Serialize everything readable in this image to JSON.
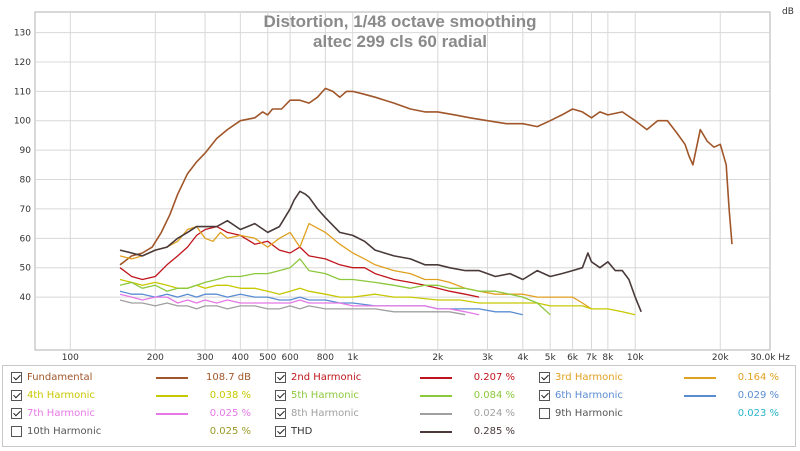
{
  "chart_data": {
    "type": "line",
    "title": "Distortion, 1/48 octave smoothing",
    "subtitle": "altec 299 cls 60 radial",
    "ylabel": "dB",
    "xlabel": "",
    "x_scale": "log",
    "xlim": [
      75,
      30000
    ],
    "ylim": [
      22,
      137
    ],
    "grid": true,
    "x_ticks": [
      {
        "v": 100,
        "label": "100"
      },
      {
        "v": 200,
        "label": "200"
      },
      {
        "v": 300,
        "label": "300"
      },
      {
        "v": 400,
        "label": "400"
      },
      {
        "v": 500,
        "label": "500"
      },
      {
        "v": 600,
        "label": "600"
      },
      {
        "v": 800,
        "label": "800"
      },
      {
        "v": 1000,
        "label": "1k"
      },
      {
        "v": 2000,
        "label": "2k"
      },
      {
        "v": 3000,
        "label": "3k"
      },
      {
        "v": 4000,
        "label": "4k"
      },
      {
        "v": 5000,
        "label": "5k"
      },
      {
        "v": 6000,
        "label": "6k"
      },
      {
        "v": 7000,
        "label": "7k"
      },
      {
        "v": 8000,
        "label": "8k"
      },
      {
        "v": 10000,
        "label": "10k"
      },
      {
        "v": 20000,
        "label": "20k"
      },
      {
        "v": 30000,
        "label": "30.0k Hz"
      }
    ],
    "y_ticks": [
      {
        "v": 40,
        "label": "40"
      },
      {
        "v": 50,
        "label": "50"
      },
      {
        "v": 60,
        "label": "60"
      },
      {
        "v": 70,
        "label": "70"
      },
      {
        "v": 80,
        "label": "80"
      },
      {
        "v": 90,
        "label": "90"
      },
      {
        "v": 100,
        "label": "100"
      },
      {
        "v": 110,
        "label": "110"
      },
      {
        "v": 120,
        "label": "120"
      },
      {
        "v": 130,
        "label": "130"
      }
    ],
    "series": [
      {
        "name": "Fundamental",
        "color": "#a0562a",
        "checked": true,
        "value": "108.7",
        "unit": "dB",
        "x": [
          150,
          155,
          165,
          180,
          195,
          210,
          225,
          240,
          260,
          280,
          300,
          330,
          360,
          400,
          450,
          480,
          500,
          520,
          560,
          600,
          650,
          700,
          750,
          800,
          850,
          900,
          950,
          1000,
          1100,
          1200,
          1400,
          1600,
          1800,
          2000,
          2300,
          2600,
          3000,
          3500,
          4000,
          4500,
          5000,
          5500,
          6000,
          6500,
          7000,
          7500,
          8000,
          9000,
          10000,
          11000,
          12000,
          13000,
          14000,
          15000,
          15500,
          16000,
          17000,
          18000,
          19000,
          20000,
          21000,
          21500,
          22000
        ],
        "y": [
          51,
          52,
          54,
          55,
          57,
          62,
          68,
          75,
          82,
          86,
          89,
          94,
          97,
          100,
          101,
          103,
          102,
          104,
          104,
          107,
          107,
          106,
          108,
          111,
          110,
          108,
          110,
          110,
          109,
          108,
          106,
          104,
          103,
          103,
          102,
          101,
          100,
          99,
          99,
          98,
          100,
          102,
          104,
          103,
          101,
          103,
          102,
          103,
          100,
          97,
          100,
          100,
          96,
          92,
          88,
          85,
          97,
          93,
          91,
          92,
          85,
          70,
          58
        ]
      },
      {
        "name": "2nd Harmonic",
        "color": "#c0141c",
        "checked": true,
        "value": "0.207",
        "unit": "%",
        "x": [
          150,
          165,
          180,
          200,
          220,
          240,
          260,
          280,
          300,
          330,
          360,
          400,
          450,
          500,
          550,
          600,
          650,
          700,
          800,
          900,
          1000,
          1100,
          1200,
          1400,
          1600,
          1800,
          2000,
          2200,
          2500,
          2800
        ],
        "y": [
          50,
          47,
          46,
          47,
          51,
          54,
          57,
          61,
          63,
          64,
          62,
          61,
          58,
          59,
          56,
          55,
          57,
          54,
          53,
          51,
          50,
          50,
          48,
          46,
          45,
          44,
          43,
          42,
          41,
          40
        ]
      },
      {
        "name": "3rd Harmonic",
        "color": "#e0a020",
        "checked": true,
        "value": "0.164",
        "unit": "%",
        "x": [
          150,
          165,
          180,
          200,
          220,
          240,
          260,
          280,
          300,
          320,
          340,
          360,
          400,
          450,
          500,
          550,
          600,
          650,
          700,
          800,
          900,
          1000,
          1100,
          1200,
          1400,
          1600,
          1800,
          2000,
          2200,
          2500,
          2800,
          3200,
          3600,
          4000,
          4500,
          5000,
          5500,
          6000,
          6500,
          7000
        ],
        "y": [
          54,
          53,
          54,
          56,
          57,
          59,
          63,
          64,
          60,
          59,
          62,
          60,
          61,
          60,
          57,
          60,
          62,
          57,
          65,
          62,
          58,
          55,
          53,
          51,
          49,
          48,
          46,
          46,
          45,
          43,
          42,
          41,
          41,
          41,
          40,
          40,
          40,
          40,
          38,
          36
        ]
      },
      {
        "name": "4th Harmonic",
        "color": "#c8c800",
        "checked": true,
        "value": "0.038",
        "unit": "%",
        "x": [
          150,
          165,
          180,
          200,
          220,
          240,
          260,
          280,
          300,
          330,
          360,
          400,
          450,
          500,
          550,
          600,
          650,
          700,
          800,
          900,
          1000,
          1200,
          1400,
          1600,
          2000,
          2400,
          2800,
          3200,
          3600,
          4000,
          4500,
          5000,
          5500,
          6000,
          6500,
          7000,
          8000,
          9000,
          10000
        ],
        "y": [
          46,
          45,
          44,
          45,
          44,
          43,
          43,
          44,
          43,
          44,
          44,
          43,
          43,
          42,
          41,
          42,
          43,
          42,
          41,
          40,
          40,
          41,
          40,
          40,
          39,
          39,
          38,
          38,
          38,
          38,
          38,
          37,
          37,
          37,
          37,
          36,
          36,
          35,
          34
        ]
      },
      {
        "name": "5th Harmonic",
        "color": "#8cc83c",
        "checked": true,
        "value": "0.084",
        "unit": "%",
        "x": [
          150,
          165,
          180,
          200,
          220,
          240,
          260,
          280,
          300,
          330,
          360,
          400,
          450,
          500,
          550,
          600,
          650,
          700,
          800,
          900,
          1000,
          1200,
          1400,
          1600,
          1800,
          2000,
          2200,
          2500,
          2800,
          3200,
          3600,
          4000,
          4500,
          5000
        ],
        "y": [
          44,
          45,
          43,
          44,
          42,
          43,
          43,
          44,
          45,
          46,
          47,
          47,
          48,
          48,
          49,
          50,
          53,
          49,
          48,
          46,
          46,
          45,
          44,
          43,
          44,
          44,
          43,
          43,
          42,
          42,
          41,
          40,
          38,
          34
        ]
      },
      {
        "name": "6th Harmonic",
        "color": "#5a8cd2",
        "checked": true,
        "value": "0.029",
        "unit": "%",
        "x": [
          150,
          165,
          180,
          200,
          220,
          240,
          260,
          280,
          300,
          330,
          360,
          400,
          450,
          500,
          550,
          600,
          650,
          700,
          800,
          900,
          1000,
          1200,
          1400,
          1600,
          1800,
          2000,
          2200,
          2500,
          2800,
          3200,
          3600,
          4000
        ],
        "y": [
          42,
          41,
          41,
          40,
          41,
          40,
          41,
          40,
          41,
          41,
          40,
          41,
          40,
          40,
          39,
          39,
          40,
          39,
          39,
          38,
          38,
          37,
          37,
          37,
          37,
          36,
          36,
          36,
          36,
          35,
          35,
          34
        ]
      },
      {
        "name": "7th Harmonic",
        "color": "#e678e6",
        "checked": true,
        "value": "0.025",
        "unit": "%",
        "x": [
          150,
          165,
          180,
          200,
          220,
          240,
          260,
          280,
          300,
          330,
          360,
          400,
          450,
          500,
          550,
          600,
          650,
          700,
          800,
          900,
          1000,
          1200,
          1400,
          1600,
          1800,
          2000,
          2200,
          2500,
          2800
        ],
        "y": [
          41,
          40,
          39,
          40,
          40,
          38,
          39,
          38,
          39,
          38,
          39,
          38,
          38,
          38,
          38,
          38,
          39,
          38,
          38,
          38,
          37,
          37,
          37,
          37,
          37,
          36,
          36,
          35,
          34
        ]
      },
      {
        "name": "8th Harmonic",
        "color": "#a0a0a0",
        "checked": true,
        "value": "0.024",
        "unit": "%",
        "x": [
          150,
          165,
          180,
          200,
          220,
          240,
          260,
          280,
          300,
          330,
          360,
          400,
          450,
          500,
          550,
          600,
          650,
          700,
          800,
          900,
          1000,
          1200,
          1400,
          1600,
          1800,
          2000,
          2200,
          2500
        ],
        "y": [
          39,
          38,
          38,
          37,
          38,
          37,
          37,
          36,
          37,
          37,
          36,
          37,
          37,
          36,
          36,
          37,
          36,
          37,
          36,
          36,
          36,
          36,
          35,
          35,
          35,
          35,
          35,
          34
        ]
      },
      {
        "name": "9th Harmonic",
        "color": "#28b4c8",
        "checked": false,
        "value": "0.023",
        "unit": "%",
        "x": [],
        "y": []
      },
      {
        "name": "10th Harmonic",
        "color": "#9a9a28",
        "checked": false,
        "value": "0.025",
        "unit": "%",
        "x": [],
        "y": []
      },
      {
        "name": "THD",
        "color": "#4a3a3a",
        "checked": true,
        "value": "0.285",
        "unit": "%",
        "x": [
          150,
          165,
          180,
          200,
          220,
          240,
          260,
          280,
          300,
          330,
          360,
          400,
          450,
          500,
          550,
          600,
          620,
          650,
          680,
          700,
          750,
          800,
          900,
          1000,
          1100,
          1200,
          1400,
          1600,
          1800,
          2000,
          2200,
          2500,
          2800,
          3200,
          3600,
          4000,
          4500,
          5000,
          5500,
          6000,
          6500,
          6800,
          7000,
          7500,
          8000,
          8500,
          9000,
          9500,
          10000,
          10500
        ],
        "y": [
          56,
          55,
          54,
          56,
          57,
          60,
          62,
          64,
          64,
          64,
          66,
          63,
          65,
          62,
          64,
          70,
          73,
          76,
          75,
          74,
          70,
          67,
          62,
          61,
          59,
          56,
          54,
          53,
          51,
          51,
          50,
          49,
          49,
          47,
          48,
          46,
          49,
          47,
          48,
          49,
          50,
          55,
          52,
          50,
          52,
          49,
          49,
          46,
          40,
          35
        ]
      }
    ]
  },
  "legend": {
    "rows": [
      {
        "name": "Fundamental",
        "value": "108.7 dB"
      },
      {
        "name": "2nd Harmonic",
        "value": "0.207 %"
      },
      {
        "name": "3rd Harmonic",
        "value": "0.164 %"
      },
      {
        "name": "4th Harmonic",
        "value": "0.038 %"
      },
      {
        "name": "5th Harmonic",
        "value": "0.084 %"
      },
      {
        "name": "6th Harmonic",
        "value": "0.029 %"
      },
      {
        "name": "7th Harmonic",
        "value": "0.025 %"
      },
      {
        "name": "8th Harmonic",
        "value": "0.024 %"
      },
      {
        "name": "9th Harmonic",
        "value": "0.023 %"
      },
      {
        "name": "10th Harmonic",
        "value": "0.025 %"
      },
      {
        "name": "THD",
        "value": "0.285 %"
      }
    ]
  }
}
